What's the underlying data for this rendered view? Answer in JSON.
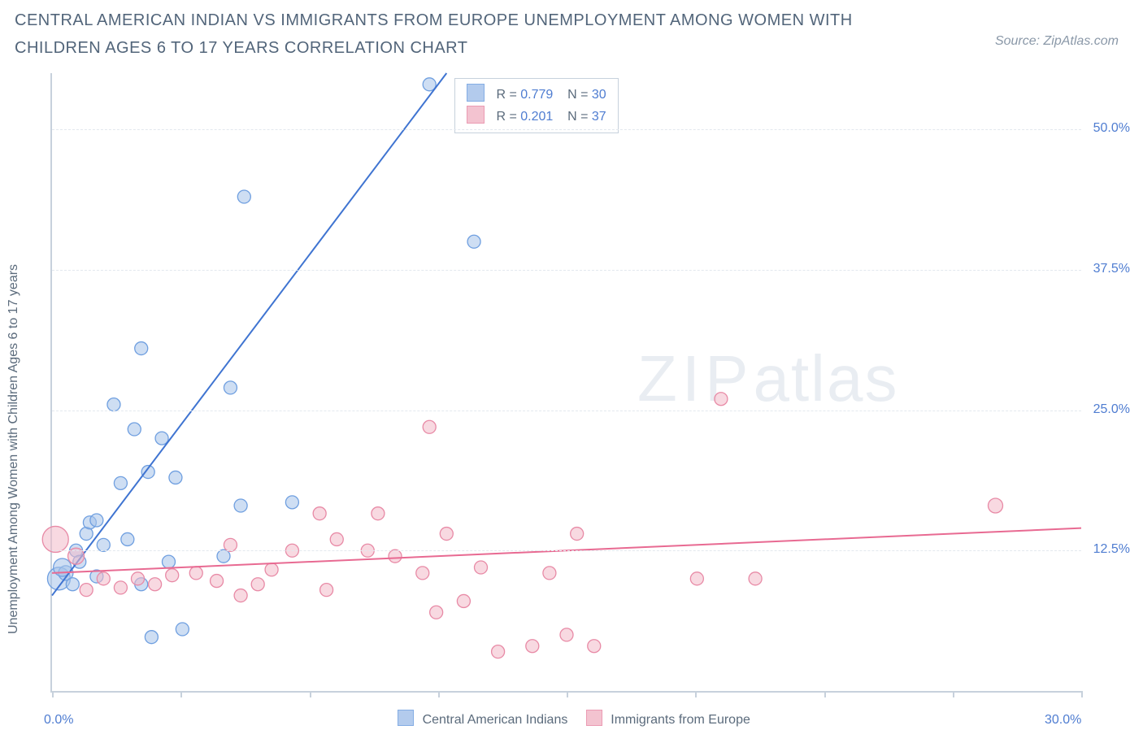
{
  "title": "CENTRAL AMERICAN INDIAN VS IMMIGRANTS FROM EUROPE UNEMPLOYMENT AMONG WOMEN WITH CHILDREN AGES 6 TO 17 YEARS CORRELATION CHART",
  "source_label": "Source: ZipAtlas.com",
  "y_axis_label": "Unemployment Among Women with Children Ages 6 to 17 years",
  "watermark_zip": "ZIP",
  "watermark_atlas": "atlas",
  "chart": {
    "type": "scatter",
    "xlim": [
      0,
      30
    ],
    "ylim": [
      0,
      55
    ],
    "x_ticks": [
      0,
      3.75,
      7.5,
      11.25,
      15,
      18.75,
      22.5,
      26.25,
      30
    ],
    "x_tick_labels": {
      "0": "0.0%",
      "30": "30.0%"
    },
    "y_gridlines": [
      12.5,
      25.0,
      37.5,
      50.0
    ],
    "y_tick_labels": [
      "12.5%",
      "25.0%",
      "37.5%",
      "50.0%"
    ],
    "background_color": "#ffffff",
    "grid_color": "#e3e8ee",
    "axis_color": "#c7d1dc",
    "label_color": "#4f7dd1",
    "series": [
      {
        "name": "Central American Indians",
        "marker_fill": "#a6c2ea",
        "marker_stroke": "#6f9fe0",
        "fill_opacity": 0.55,
        "line_color": "#3f74d1",
        "line_width": 2,
        "R": "0.779",
        "N": "30",
        "trend": {
          "x1": 0,
          "y1": 8.5,
          "x2": 11.5,
          "y2": 55
        },
        "points": [
          {
            "x": 0.2,
            "y": 10.0,
            "r": 14
          },
          {
            "x": 0.4,
            "y": 10.5,
            "r": 9
          },
          {
            "x": 0.3,
            "y": 11.0,
            "r": 11
          },
          {
            "x": 0.6,
            "y": 9.5,
            "r": 8
          },
          {
            "x": 0.7,
            "y": 12.5,
            "r": 8
          },
          {
            "x": 0.8,
            "y": 11.5,
            "r": 8
          },
          {
            "x": 1.0,
            "y": 14.0,
            "r": 8
          },
          {
            "x": 1.1,
            "y": 15.0,
            "r": 8
          },
          {
            "x": 1.3,
            "y": 15.2,
            "r": 8
          },
          {
            "x": 1.3,
            "y": 10.2,
            "r": 8
          },
          {
            "x": 1.5,
            "y": 13.0,
            "r": 8
          },
          {
            "x": 1.8,
            "y": 25.5,
            "r": 8
          },
          {
            "x": 2.0,
            "y": 18.5,
            "r": 8
          },
          {
            "x": 2.2,
            "y": 13.5,
            "r": 8
          },
          {
            "x": 2.4,
            "y": 23.3,
            "r": 8
          },
          {
            "x": 2.6,
            "y": 30.5,
            "r": 8
          },
          {
            "x": 2.6,
            "y": 9.5,
            "r": 8
          },
          {
            "x": 2.8,
            "y": 19.5,
            "r": 8
          },
          {
            "x": 2.9,
            "y": 4.8,
            "r": 8
          },
          {
            "x": 3.2,
            "y": 22.5,
            "r": 8
          },
          {
            "x": 3.4,
            "y": 11.5,
            "r": 8
          },
          {
            "x": 3.6,
            "y": 19.0,
            "r": 8
          },
          {
            "x": 3.8,
            "y": 5.5,
            "r": 8
          },
          {
            "x": 5.0,
            "y": 12.0,
            "r": 8
          },
          {
            "x": 5.2,
            "y": 27.0,
            "r": 8
          },
          {
            "x": 5.5,
            "y": 16.5,
            "r": 8
          },
          {
            "x": 5.6,
            "y": 44.0,
            "r": 8
          },
          {
            "x": 7.0,
            "y": 16.8,
            "r": 8
          },
          {
            "x": 11.0,
            "y": 54.0,
            "r": 8
          },
          {
            "x": 12.3,
            "y": 40.0,
            "r": 8
          }
        ]
      },
      {
        "name": "Immigrants from Europe",
        "marker_fill": "#f2b9c8",
        "marker_stroke": "#e88aa6",
        "fill_opacity": 0.55,
        "line_color": "#e86a92",
        "line_width": 2,
        "R": "0.201",
        "N": "37",
        "trend": {
          "x1": 0,
          "y1": 10.5,
          "x2": 30,
          "y2": 14.5
        },
        "points": [
          {
            "x": 0.1,
            "y": 13.5,
            "r": 16
          },
          {
            "x": 0.7,
            "y": 12.0,
            "r": 10
          },
          {
            "x": 1.0,
            "y": 9.0,
            "r": 8
          },
          {
            "x": 1.5,
            "y": 10.0,
            "r": 8
          },
          {
            "x": 2.0,
            "y": 9.2,
            "r": 8
          },
          {
            "x": 2.5,
            "y": 10.0,
            "r": 8
          },
          {
            "x": 3.0,
            "y": 9.5,
            "r": 8
          },
          {
            "x": 3.5,
            "y": 10.3,
            "r": 8
          },
          {
            "x": 4.2,
            "y": 10.5,
            "r": 8
          },
          {
            "x": 4.8,
            "y": 9.8,
            "r": 8
          },
          {
            "x": 5.2,
            "y": 13.0,
            "r": 8
          },
          {
            "x": 5.5,
            "y": 8.5,
            "r": 8
          },
          {
            "x": 6.0,
            "y": 9.5,
            "r": 8
          },
          {
            "x": 6.4,
            "y": 10.8,
            "r": 8
          },
          {
            "x": 7.0,
            "y": 12.5,
            "r": 8
          },
          {
            "x": 7.8,
            "y": 15.8,
            "r": 8
          },
          {
            "x": 8.0,
            "y": 9.0,
            "r": 8
          },
          {
            "x": 8.3,
            "y": 13.5,
            "r": 8
          },
          {
            "x": 9.2,
            "y": 12.5,
            "r": 8
          },
          {
            "x": 9.5,
            "y": 15.8,
            "r": 8
          },
          {
            "x": 10.0,
            "y": 12.0,
            "r": 8
          },
          {
            "x": 10.8,
            "y": 10.5,
            "r": 8
          },
          {
            "x": 11.0,
            "y": 23.5,
            "r": 8
          },
          {
            "x": 11.2,
            "y": 7.0,
            "r": 8
          },
          {
            "x": 11.5,
            "y": 14.0,
            "r": 8
          },
          {
            "x": 12.0,
            "y": 8.0,
            "r": 8
          },
          {
            "x": 12.5,
            "y": 11.0,
            "r": 8
          },
          {
            "x": 13.0,
            "y": 3.5,
            "r": 8
          },
          {
            "x": 14.0,
            "y": 4.0,
            "r": 8
          },
          {
            "x": 14.5,
            "y": 10.5,
            "r": 8
          },
          {
            "x": 15.0,
            "y": 5.0,
            "r": 8
          },
          {
            "x": 15.3,
            "y": 14.0,
            "r": 8
          },
          {
            "x": 15.8,
            "y": 4.0,
            "r": 8
          },
          {
            "x": 18.8,
            "y": 10.0,
            "r": 8
          },
          {
            "x": 19.5,
            "y": 26.0,
            "r": 8
          },
          {
            "x": 20.5,
            "y": 10.0,
            "r": 8
          },
          {
            "x": 27.5,
            "y": 16.5,
            "r": 9
          }
        ]
      }
    ]
  },
  "legend": {
    "series1_label": "Central American Indians",
    "series2_label": "Immigrants from Europe"
  },
  "stats": {
    "r_label": "R =",
    "n_label": "N ="
  }
}
